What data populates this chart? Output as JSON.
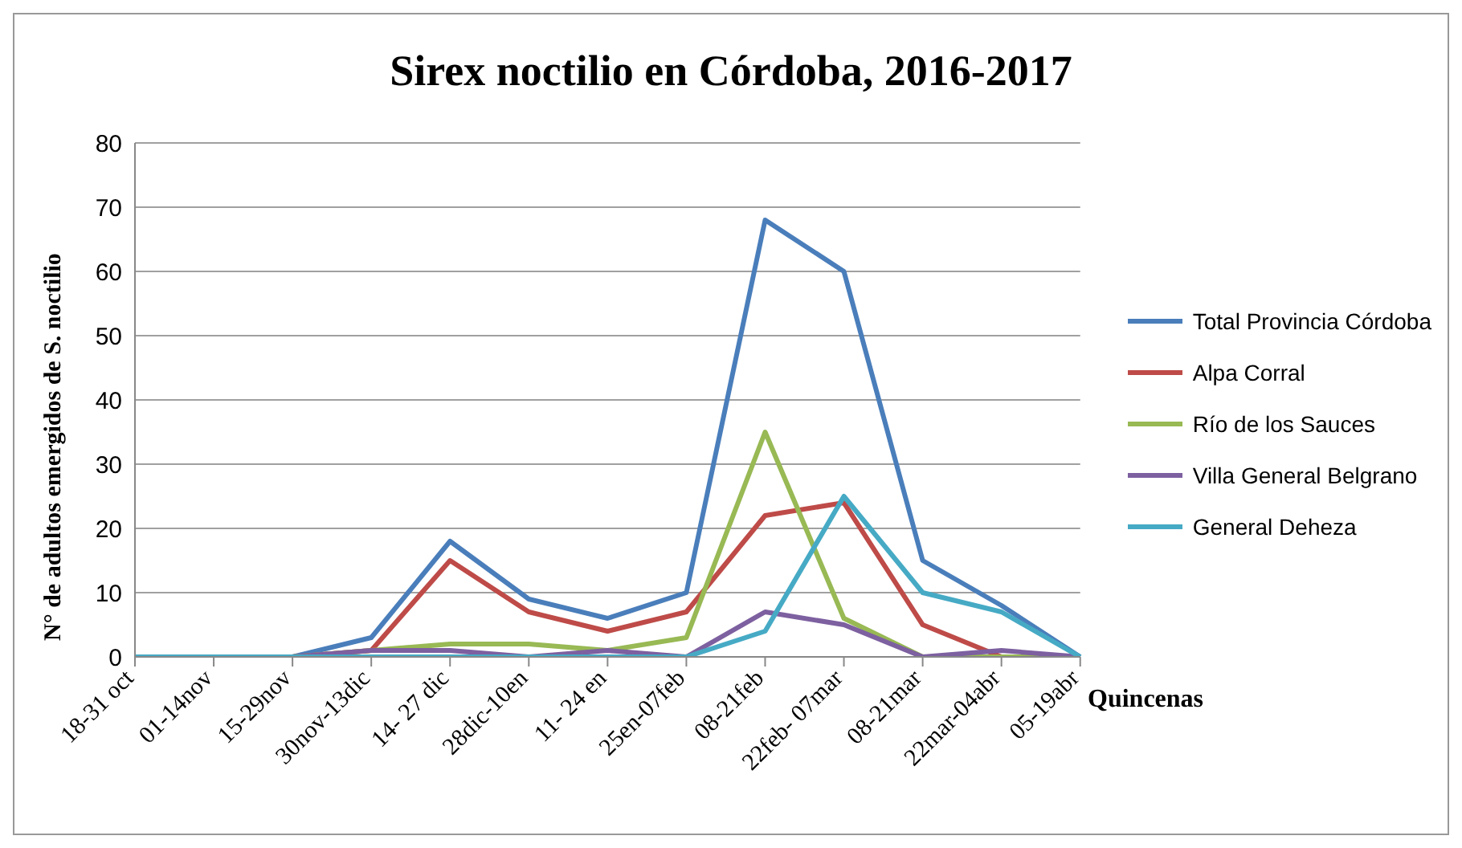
{
  "chart_data": {
    "type": "line",
    "title": "Sirex noctilio en Córdoba, 2016-2017",
    "xlabel": "Quincenas",
    "ylabel": "N° de adultos emergidos de S. noctilio",
    "categories": [
      "18-31 oct",
      "01-14nov",
      "15-29nov",
      "30nov-13dic",
      "14- 27 dic",
      "28dic-10en",
      "11- 24 en",
      "25en-07feb",
      "08-21feb",
      "22feb- 07mar",
      "08-21mar",
      "22mar-04abr",
      "05-19abr"
    ],
    "series": [
      {
        "name": "Total Provincia Córdoba",
        "color": "#4a7ebb",
        "values": [
          0,
          0,
          0,
          3,
          18,
          9,
          6,
          10,
          68,
          60,
          15,
          8,
          0
        ]
      },
      {
        "name": "Alpa Corral",
        "color": "#be4b48",
        "values": [
          null,
          null,
          0,
          1,
          15,
          7,
          4,
          7,
          22,
          24,
          5,
          0,
          0
        ]
      },
      {
        "name": "Río de los Sauces",
        "color": "#98b954",
        "values": [
          null,
          null,
          0,
          1,
          2,
          2,
          1,
          3,
          35,
          6,
          0,
          0,
          0
        ]
      },
      {
        "name": "Villa General Belgrano",
        "color": "#7d60a0",
        "values": [
          0,
          0,
          0,
          1,
          1,
          0,
          1,
          0,
          7,
          5,
          0,
          1,
          0
        ]
      },
      {
        "name": "General Deheza",
        "color": "#46aac5",
        "values": [
          0,
          0,
          0,
          0,
          0,
          0,
          0,
          0,
          4,
          25,
          10,
          7,
          0
        ]
      }
    ],
    "ylim": [
      0,
      80
    ],
    "yticks": [
      0,
      10,
      20,
      30,
      40,
      50,
      60,
      70,
      80
    ],
    "grid": "y",
    "legend": "right",
    "marker": "none",
    "line_style": "solid"
  }
}
